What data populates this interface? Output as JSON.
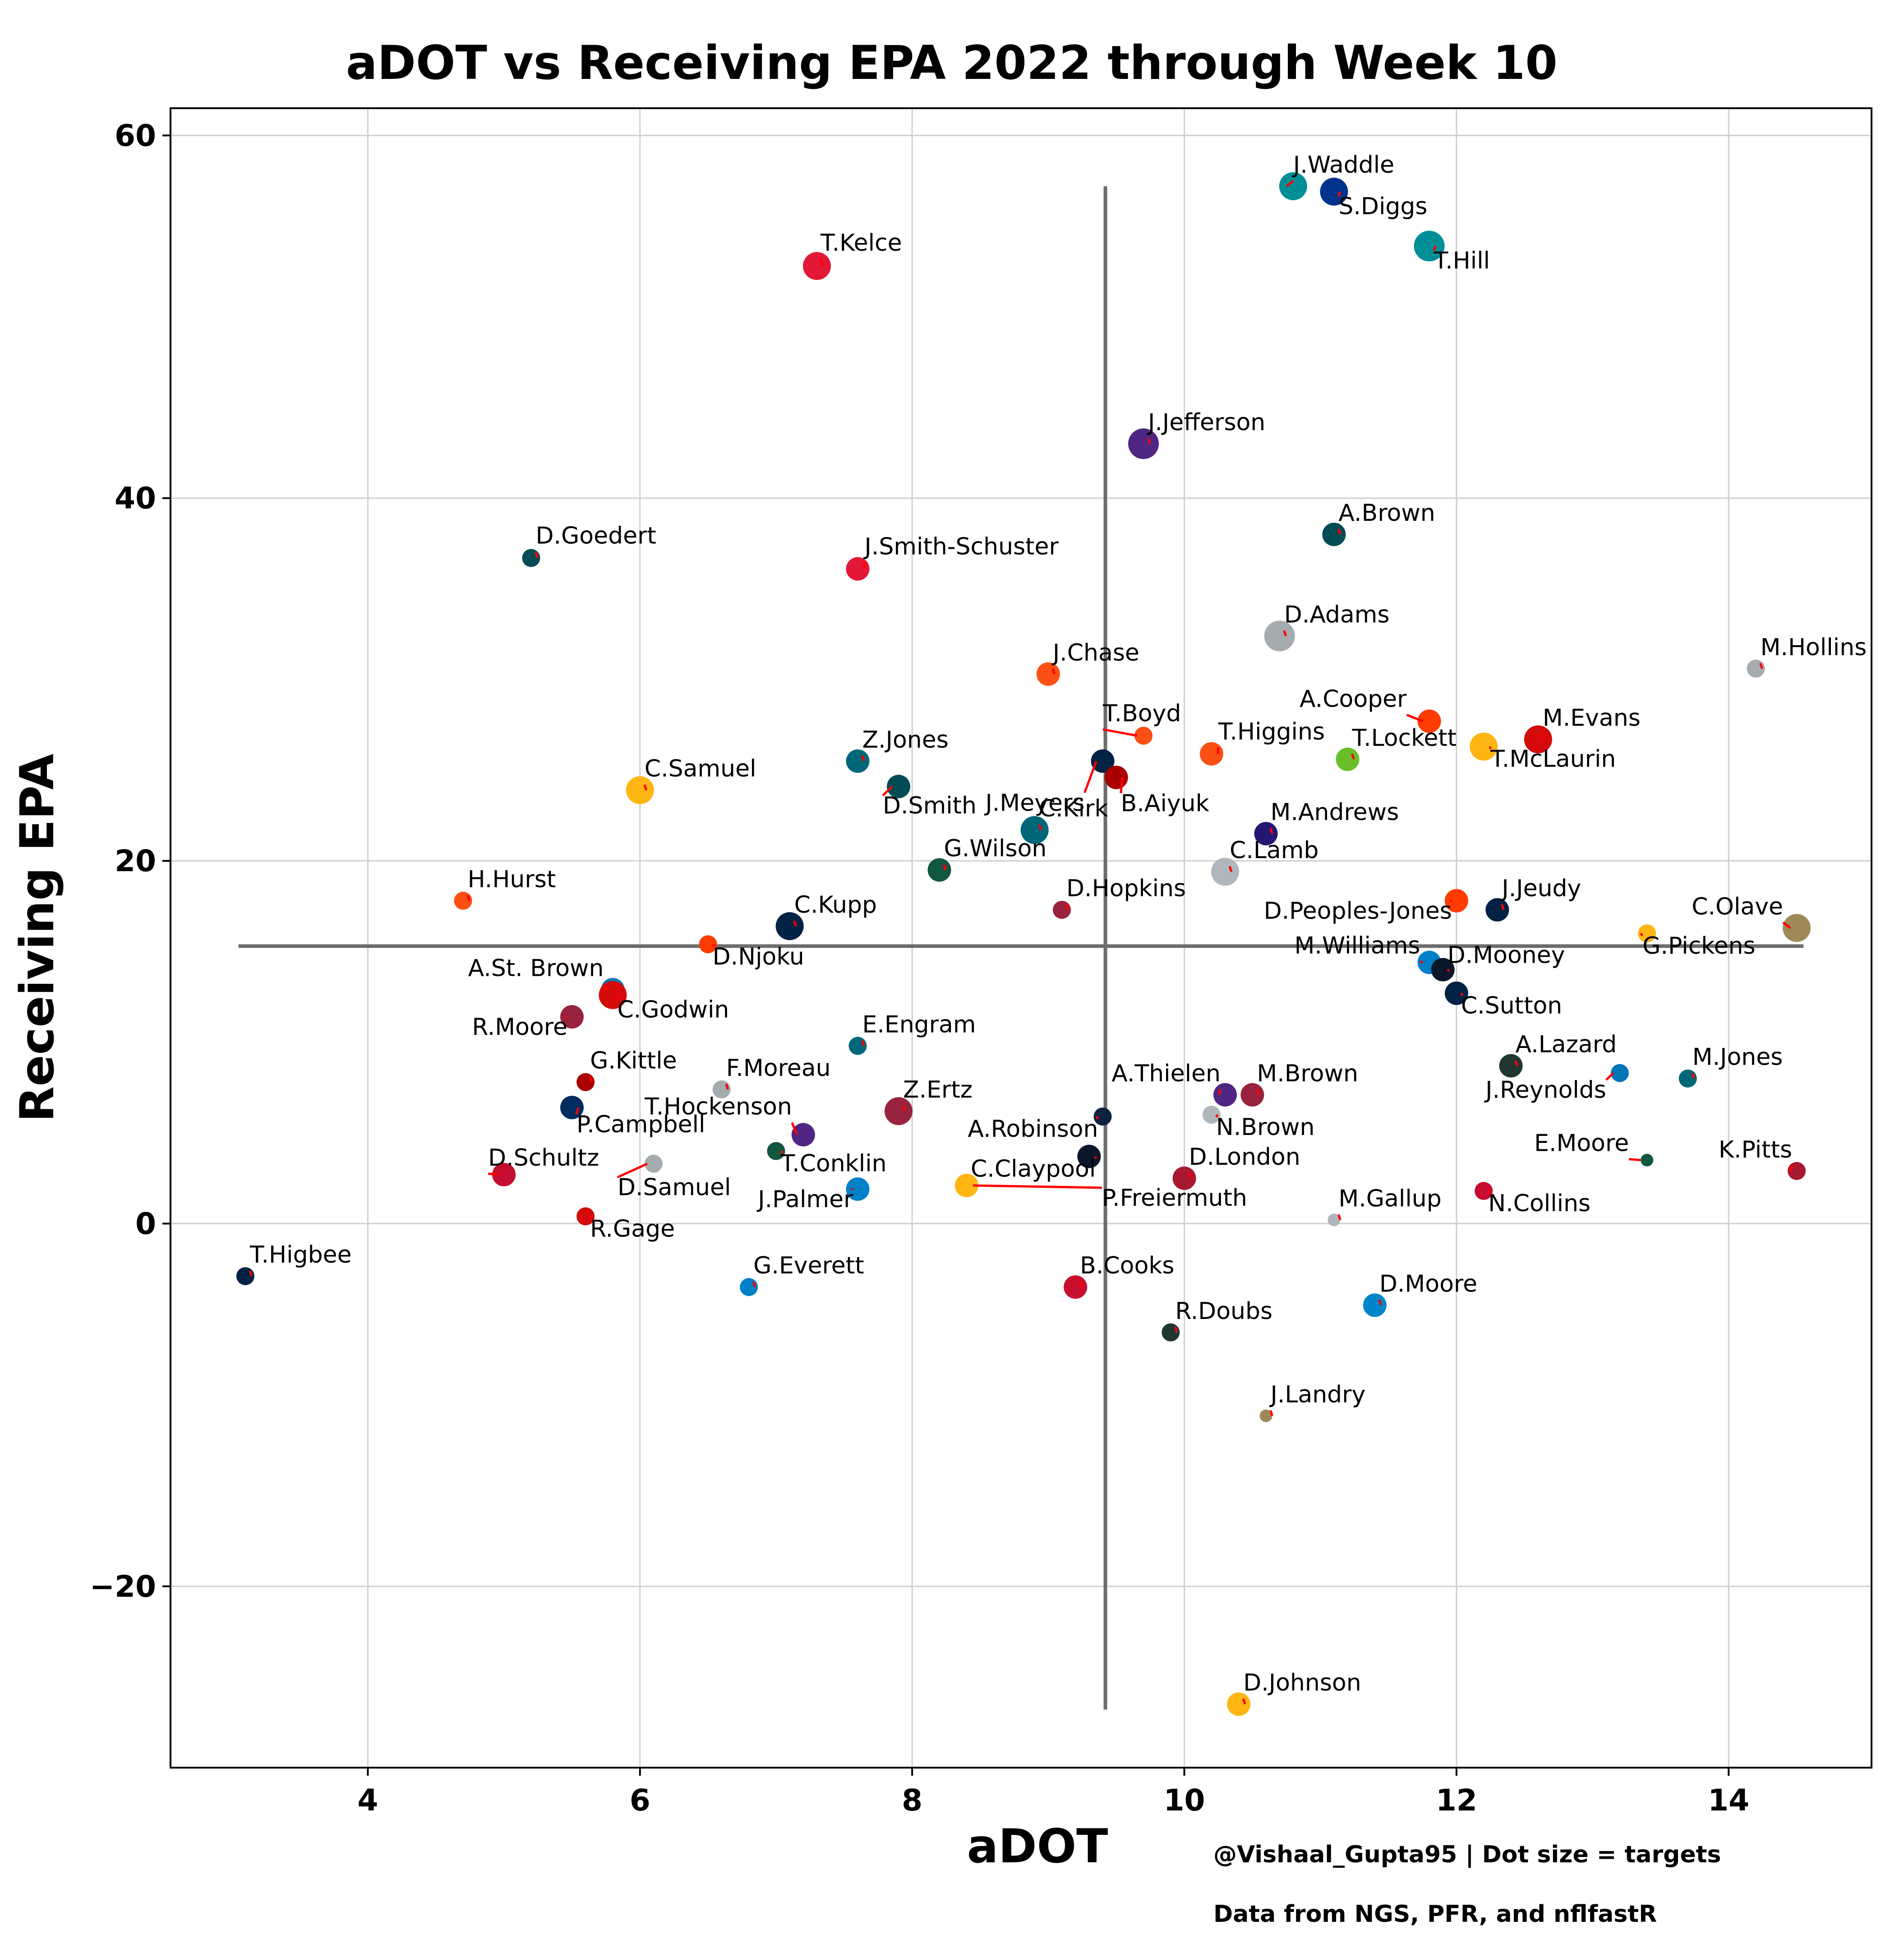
{
  "chart_data": {
    "type": "scatter",
    "title": "aDOT vs Receiving EPA 2022 through Week 10",
    "xlabel": "aDOT",
    "ylabel": "Receiving EPA",
    "xlim": [
      2.55,
      15.05
    ],
    "ylim": [
      -30.0,
      61.5
    ],
    "xticks": [
      4,
      6,
      8,
      10,
      12,
      14
    ],
    "yticks": [
      -20,
      0,
      20,
      40,
      60
    ],
    "ytick_labels": [
      "−20",
      "0",
      "20",
      "40",
      "60"
    ],
    "grid": true,
    "legend": "none",
    "reference_lines": {
      "mean_adot": 9.42,
      "mean_epa": 15.3
    },
    "footer": [
      "@Vishaal_Gupta95 | Dot size = targets",
      "Data from NGS, PFR, and nflfastR"
    ],
    "points": [
      {
        "label": "J.Waddle",
        "x": 10.8,
        "y": 57.2,
        "color": "#008E97",
        "size": "large"
      },
      {
        "label": "S.Diggs",
        "x": 11.1,
        "y": 56.9,
        "color": "#00338D",
        "size": "large"
      },
      {
        "label": "T.Hill",
        "x": 11.8,
        "y": 53.9,
        "color": "#008E97",
        "size": "xlarge"
      },
      {
        "label": "T.Kelce",
        "x": 7.3,
        "y": 52.8,
        "color": "#E31837",
        "size": "large"
      },
      {
        "label": "J.Jefferson",
        "x": 9.7,
        "y": 43.0,
        "color": "#4F2683",
        "size": "xlarge"
      },
      {
        "label": "A.Brown",
        "x": 11.1,
        "y": 38.0,
        "color": "#004C54",
        "size": "medium"
      },
      {
        "label": "D.Goedert",
        "x": 5.2,
        "y": 36.7,
        "color": "#004C54",
        "size": "small"
      },
      {
        "label": "J.Smith-Schuster",
        "x": 7.6,
        "y": 36.1,
        "color": "#E31837",
        "size": "medium"
      },
      {
        "label": "D.Adams",
        "x": 10.7,
        "y": 32.4,
        "color": "#A5ACAF",
        "size": "xlarge"
      },
      {
        "label": "M.Hollins",
        "x": 14.2,
        "y": 30.6,
        "color": "#A5ACAF",
        "size": "small"
      },
      {
        "label": "J.Chase",
        "x": 9.0,
        "y": 30.3,
        "color": "#FB4F14",
        "size": "medium"
      },
      {
        "label": "A.Cooper",
        "x": 11.8,
        "y": 27.7,
        "color": "#FF3C00",
        "size": "medium"
      },
      {
        "label": "T.Boyd",
        "x": 9.7,
        "y": 26.9,
        "color": "#FB4F14",
        "size": "small"
      },
      {
        "label": "M.Evans",
        "x": 12.6,
        "y": 26.7,
        "color": "#D50A0A",
        "size": "large"
      },
      {
        "label": "T.Higgins",
        "x": 10.2,
        "y": 25.9,
        "color": "#FB4F14",
        "size": "medium"
      },
      {
        "label": "T.McLaurin",
        "x": 12.2,
        "y": 26.3,
        "color": "#FFB612",
        "size": "large"
      },
      {
        "label": "T.Lockett",
        "x": 11.2,
        "y": 25.6,
        "color": "#69BE28",
        "size": "medium"
      },
      {
        "label": "Z.Jones",
        "x": 7.6,
        "y": 25.5,
        "color": "#006778",
        "size": "medium"
      },
      {
        "label": "J.Meyers",
        "x": 9.4,
        "y": 25.5,
        "color": "#002244",
        "size": "medium"
      },
      {
        "label": "B.Aiyuk",
        "x": 9.5,
        "y": 24.6,
        "color": "#AA0000",
        "size": "medium"
      },
      {
        "label": "C.Samuel",
        "x": 6.0,
        "y": 23.9,
        "color": "#FFB612",
        "size": "large"
      },
      {
        "label": "D.Smith",
        "x": 7.9,
        "y": 24.1,
        "color": "#004C54",
        "size": "medium"
      },
      {
        "label": "C.Kirk",
        "x": 8.9,
        "y": 21.7,
        "color": "#006778",
        "size": "large"
      },
      {
        "label": "M.Andrews",
        "x": 10.6,
        "y": 21.5,
        "color": "#241773",
        "size": "medium"
      },
      {
        "label": "G.Wilson",
        "x": 8.2,
        "y": 19.5,
        "color": "#125740",
        "size": "medium"
      },
      {
        "label": "C.Lamb",
        "x": 10.3,
        "y": 19.4,
        "color": "#B0B7BC",
        "size": "large"
      },
      {
        "label": "H.Hurst",
        "x": 4.7,
        "y": 17.8,
        "color": "#FB4F14",
        "size": "small"
      },
      {
        "label": "D.Peoples-Jones",
        "x": 12.0,
        "y": 17.8,
        "color": "#FF3C00",
        "size": "medium"
      },
      {
        "label": "J.Jeudy",
        "x": 12.3,
        "y": 17.3,
        "color": "#002244",
        "size": "medium"
      },
      {
        "label": "D.Hopkins",
        "x": 9.1,
        "y": 17.3,
        "color": "#97233F",
        "size": "small"
      },
      {
        "label": "C.Kupp",
        "x": 7.1,
        "y": 16.4,
        "color": "#002244",
        "size": "large"
      },
      {
        "label": "C.Olave",
        "x": 14.5,
        "y": 16.3,
        "color": "#9F8958",
        "size": "large"
      },
      {
        "label": "G.Pickens",
        "x": 13.4,
        "y": 16.0,
        "color": "#FFB612",
        "size": "small"
      },
      {
        "label": "D.Njoku",
        "x": 6.5,
        "y": 15.4,
        "color": "#FF3C00",
        "size": "small"
      },
      {
        "label": "M.Williams",
        "x": 11.8,
        "y": 14.4,
        "color": "#0080C6",
        "size": "medium"
      },
      {
        "label": "D.Mooney",
        "x": 11.9,
        "y": 14.0,
        "color": "#0B162A",
        "size": "medium"
      },
      {
        "label": "A.St. Brown",
        "x": 5.8,
        "y": 12.9,
        "color": "#0076B6",
        "size": "medium"
      },
      {
        "label": "C.Godwin",
        "x": 5.8,
        "y": 12.6,
        "color": "#D50A0A",
        "size": "large"
      },
      {
        "label": "C.Sutton",
        "x": 12.0,
        "y": 12.7,
        "color": "#002244",
        "size": "medium"
      },
      {
        "label": "R.Moore",
        "x": 5.5,
        "y": 11.4,
        "color": "#97233F",
        "size": "medium"
      },
      {
        "label": "E.Engram",
        "x": 7.6,
        "y": 9.8,
        "color": "#006778",
        "size": "small"
      },
      {
        "label": "A.Lazard",
        "x": 12.4,
        "y": 8.7,
        "color": "#203731",
        "size": "medium"
      },
      {
        "label": "J.Reynolds",
        "x": 13.2,
        "y": 8.3,
        "color": "#0076B6",
        "size": "small"
      },
      {
        "label": "M.Jones",
        "x": 13.7,
        "y": 8.0,
        "color": "#006778",
        "size": "small"
      },
      {
        "label": "G.Kittle",
        "x": 5.6,
        "y": 7.8,
        "color": "#AA0000",
        "size": "small"
      },
      {
        "label": "F.Moreau",
        "x": 6.6,
        "y": 7.4,
        "color": "#A5ACAF",
        "size": "small"
      },
      {
        "label": "A.Thielen",
        "x": 10.3,
        "y": 7.1,
        "color": "#4F2683",
        "size": "medium"
      },
      {
        "label": "M.Brown",
        "x": 10.5,
        "y": 7.1,
        "color": "#97233F",
        "size": "medium"
      },
      {
        "label": "P.Campbell",
        "x": 5.5,
        "y": 6.4,
        "color": "#002C5F",
        "size": "medium"
      },
      {
        "label": "Z.Ertz",
        "x": 7.9,
        "y": 6.2,
        "color": "#97233F",
        "size": "large"
      },
      {
        "label": "N.Brown",
        "x": 10.2,
        "y": 6.0,
        "color": "#B0B7BC",
        "size": "small"
      },
      {
        "label": "A.Robinson",
        "x": 9.4,
        "y": 5.9,
        "color": "#0C2340",
        "size": "small"
      },
      {
        "label": "T.Hockenson",
        "x": 7.2,
        "y": 4.9,
        "color": "#4F2683",
        "size": "medium"
      },
      {
        "label": "T.Conklin",
        "x": 7.0,
        "y": 4.0,
        "color": "#125740",
        "size": "small"
      },
      {
        "label": "C.Claypool",
        "x": 9.3,
        "y": 3.7,
        "color": "#0B162A",
        "size": "medium"
      },
      {
        "label": "E.Moore",
        "x": 13.4,
        "y": 3.5,
        "color": "#125740",
        "size": "xsmall"
      },
      {
        "label": "D.Samuel",
        "x": 6.1,
        "y": 3.3,
        "color": "#A5ACAF",
        "size": "small"
      },
      {
        "label": "K.Pitts",
        "x": 14.5,
        "y": 2.9,
        "color": "#A71930",
        "size": "small"
      },
      {
        "label": "D.Schultz",
        "x": 5.0,
        "y": 2.7,
        "color": "#C60C30",
        "size": "medium"
      },
      {
        "label": "D.London",
        "x": 10.0,
        "y": 2.5,
        "color": "#A71930",
        "size": "medium"
      },
      {
        "label": "P.Freiermuth",
        "x": 8.4,
        "y": 2.1,
        "color": "#FFB612",
        "size": "medium"
      },
      {
        "label": "J.Palmer",
        "x": 7.6,
        "y": 1.9,
        "color": "#0080C6",
        "size": "medium"
      },
      {
        "label": "N.Collins",
        "x": 12.2,
        "y": 1.8,
        "color": "#C60C30",
        "size": "small"
      },
      {
        "label": "R.Gage",
        "x": 5.6,
        "y": 0.4,
        "color": "#D50A0A",
        "size": "small"
      },
      {
        "label": "M.Gallup",
        "x": 11.1,
        "y": 0.2,
        "color": "#B0B7BC",
        "size": "xsmall"
      },
      {
        "label": "T.Higbee",
        "x": 3.1,
        "y": -2.9,
        "color": "#002244",
        "size": "small"
      },
      {
        "label": "G.Everett",
        "x": 6.8,
        "y": -3.5,
        "color": "#0080C6",
        "size": "small"
      },
      {
        "label": "B.Cooks",
        "x": 9.2,
        "y": -3.5,
        "color": "#C8102E",
        "size": "medium"
      },
      {
        "label": "D.Moore",
        "x": 11.4,
        "y": -4.5,
        "color": "#0085CA",
        "size": "medium"
      },
      {
        "label": "R.Doubs",
        "x": 9.9,
        "y": -6.0,
        "color": "#203731",
        "size": "small"
      },
      {
        "label": "J.Landry",
        "x": 10.6,
        "y": -10.6,
        "color": "#9F8958",
        "size": "xsmall"
      },
      {
        "label": "D.Johnson",
        "x": 10.4,
        "y": -26.5,
        "color": "#FFB612",
        "size": "medium"
      }
    ]
  }
}
